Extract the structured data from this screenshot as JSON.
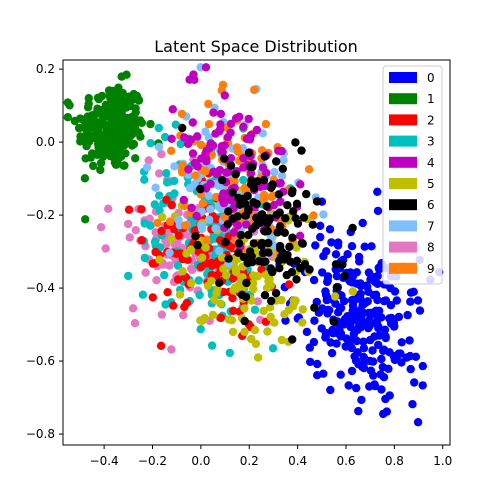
{
  "chart_data": {
    "type": "scatter",
    "title": "Latent Space Distribution",
    "xlabel": "",
    "ylabel": "",
    "xlim": [
      -0.57,
      1.03
    ],
    "ylim": [
      -0.83,
      0.225
    ],
    "x_ticks": [
      -0.4,
      -0.2,
      0.0,
      0.2,
      0.4,
      0.6,
      0.8,
      1.0
    ],
    "x_tick_labels": [
      "−0.4",
      "−0.2",
      "0.0",
      "0.2",
      "0.4",
      "0.6",
      "0.8",
      "1.0"
    ],
    "y_ticks": [
      0.2,
      0.0,
      -0.2,
      -0.4,
      -0.6,
      -0.8
    ],
    "y_tick_labels": [
      "0.2",
      "0.0",
      "−0.2",
      "−0.4",
      "−0.6",
      "−0.8"
    ],
    "grid": false,
    "legend_position": "top-right",
    "series": [
      {
        "name": "0",
        "color": "#0000ff",
        "center": [
          0.66,
          -0.47
        ],
        "spread": [
          0.1,
          0.1
        ],
        "count": 260
      },
      {
        "name": "1",
        "color": "#008000",
        "center": [
          -0.37,
          0.04
        ],
        "spread": [
          0.07,
          0.06
        ],
        "count": 240
      },
      {
        "name": "2",
        "color": "#ff0000",
        "center": [
          0.05,
          -0.32
        ],
        "spread": [
          0.12,
          0.09
        ],
        "count": 110
      },
      {
        "name": "3",
        "color": "#00bfbf",
        "center": [
          0.03,
          -0.24
        ],
        "spread": [
          0.14,
          0.12
        ],
        "count": 150
      },
      {
        "name": "4",
        "color": "#bf00bf",
        "center": [
          0.12,
          -0.06
        ],
        "spread": [
          0.11,
          0.08
        ],
        "count": 110
      },
      {
        "name": "5",
        "color": "#bfbf00",
        "center": [
          0.2,
          -0.34
        ],
        "spread": [
          0.12,
          0.1
        ],
        "count": 140
      },
      {
        "name": "6",
        "color": "#000000",
        "center": [
          0.28,
          -0.22
        ],
        "spread": [
          0.12,
          0.09
        ],
        "count": 130
      },
      {
        "name": "7",
        "color": "#7fbfff",
        "center": [
          0.1,
          -0.12
        ],
        "spread": [
          0.12,
          0.09
        ],
        "count": 90
      },
      {
        "name": "8",
        "color": "#e377c2",
        "center": [
          -0.05,
          -0.3
        ],
        "spread": [
          0.12,
          0.09
        ],
        "count": 140
      },
      {
        "name": "9",
        "color": "#ff7f0e",
        "center": [
          0.15,
          -0.1
        ],
        "spread": [
          0.12,
          0.1
        ],
        "count": 90
      }
    ]
  }
}
